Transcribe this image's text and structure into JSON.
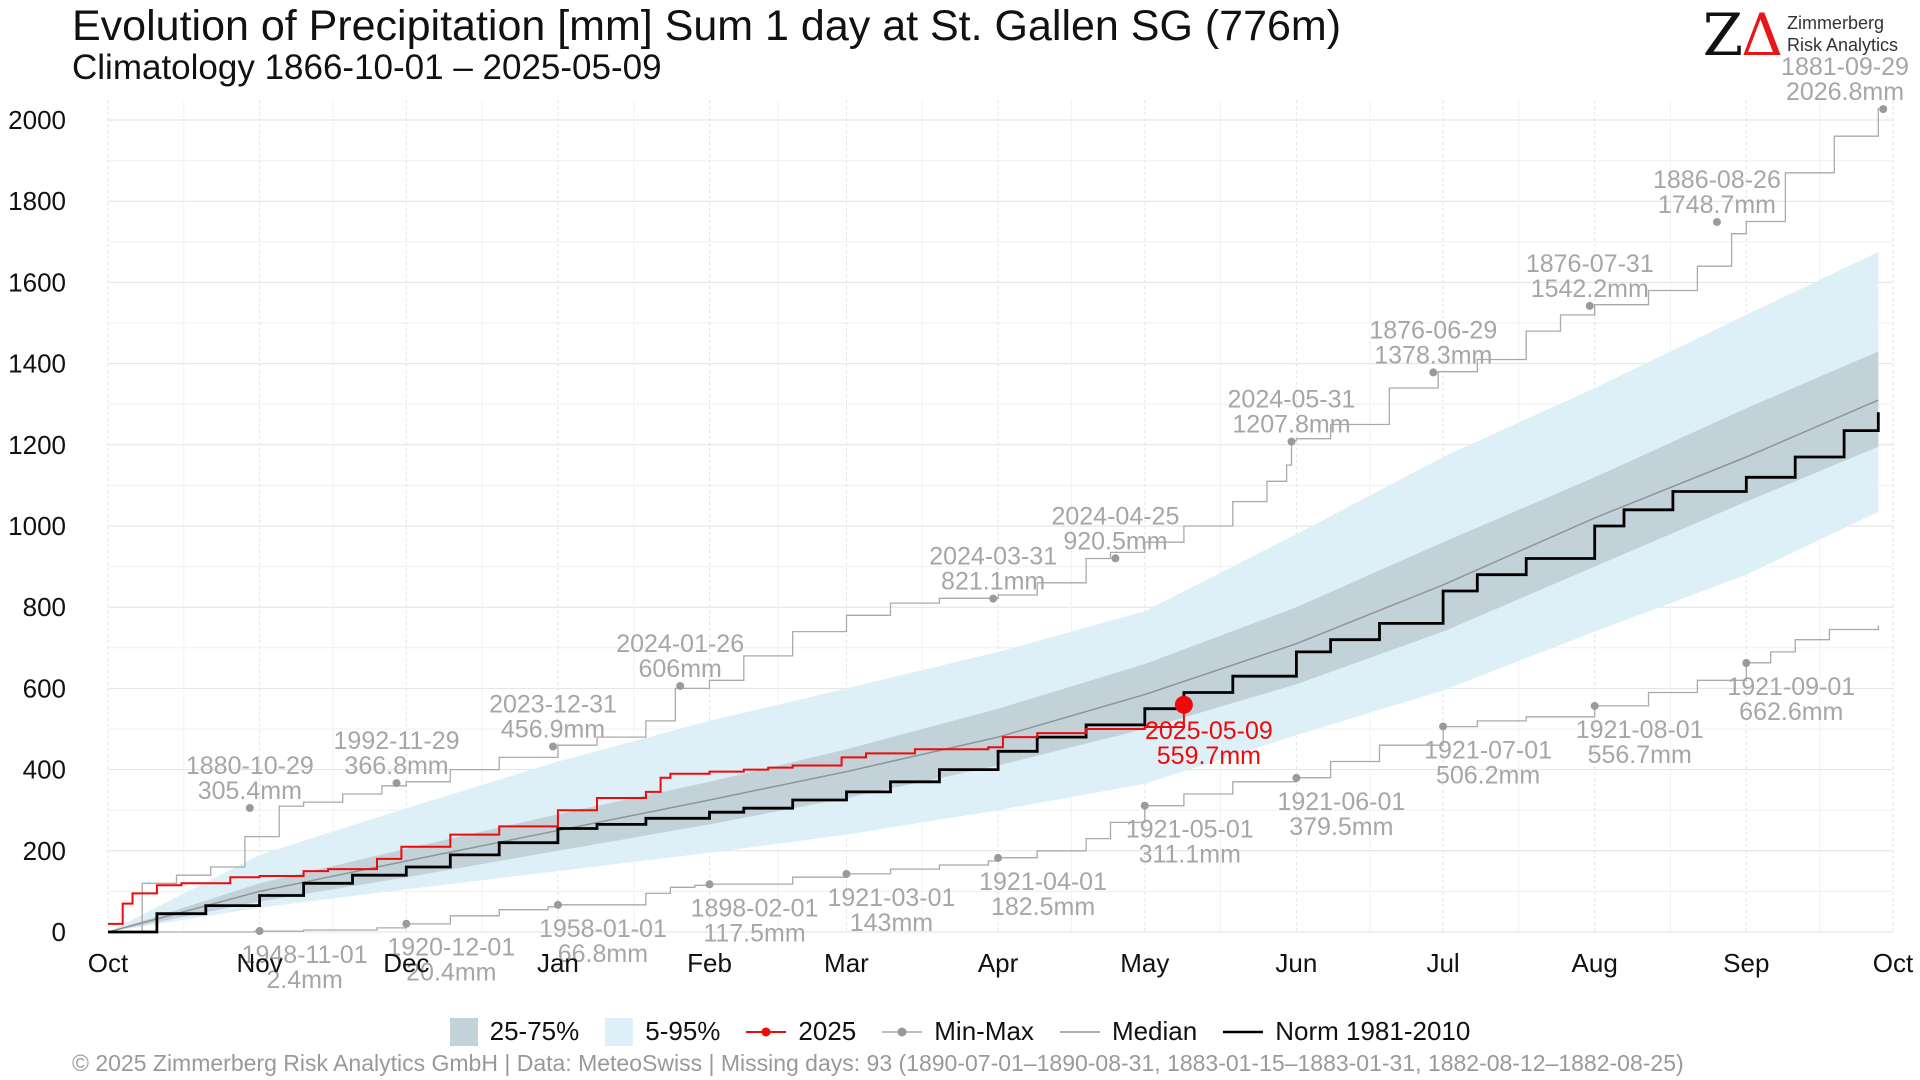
{
  "header": {
    "title": "Evolution of Precipitation [mm] Sum 1 day at St. Gallen  SG (776m)",
    "subtitle": "Climatology 1866-10-01 – 2025-05-09"
  },
  "logo": {
    "mark": "ZΔ",
    "line1": "Zimmerberg",
    "line2": "Risk Analytics"
  },
  "caption": "©  2025 Zimmerberg Risk Analytics GmbH | Data: MeteoSwiss | Missing days: 93 (1890-07-01–1890-08-31, 1883-01-15–1883-01-31, 1882-08-12–1882-08-25)",
  "colors": {
    "band_5_95": "#ddf0f8",
    "band_25_75": "#c3d2d8",
    "current": "#ee0a0a",
    "minmax": "#aaaaaa",
    "median": "#8e9599",
    "norm": "#000000",
    "label": "#a6a6a6"
  },
  "chart_data": {
    "type": "line",
    "x_unit": "day of hydrological year (Oct 1 = 0)",
    "xlim": [
      0,
      365
    ],
    "ylim": [
      0,
      2000
    ],
    "yticks": [
      0,
      200,
      400,
      600,
      800,
      1000,
      1200,
      1400,
      1600,
      1800,
      2000
    ],
    "xticks": [
      {
        "label": "Oct",
        "x": 0
      },
      {
        "label": "Nov",
        "x": 31
      },
      {
        "label": "Dec",
        "x": 61
      },
      {
        "label": "Jan",
        "x": 92
      },
      {
        "label": "Feb",
        "x": 123
      },
      {
        "label": "Mar",
        "x": 151
      },
      {
        "label": "Apr",
        "x": 182
      },
      {
        "label": "May",
        "x": 212
      },
      {
        "label": "Jun",
        "x": 243
      },
      {
        "label": "Jul",
        "x": 273
      },
      {
        "label": "Aug",
        "x": 304
      },
      {
        "label": "Sep",
        "x": 335
      },
      {
        "label": "Oct",
        "x": 365
      }
    ],
    "grid": true,
    "legend": {
      "position": "bottom",
      "items": [
        {
          "label": "25-75%",
          "kind": "band_25_75"
        },
        {
          "label": "5-95%",
          "kind": "band_5_95"
        },
        {
          "label": "2025",
          "kind": "current"
        },
        {
          "label": "Min-Max",
          "kind": "minmax"
        },
        {
          "label": "Median",
          "kind": "median"
        },
        {
          "label": "Norm 1981-2010",
          "kind": "norm"
        }
      ]
    },
    "bands": {
      "x": [
        0,
        31,
        61,
        92,
        123,
        151,
        182,
        212,
        243,
        273,
        304,
        335,
        362
      ],
      "p5": [
        0,
        60,
        105,
        150,
        195,
        240,
        300,
        365,
        485,
        595,
        740,
        880,
        1035
      ],
      "p25": [
        0,
        75,
        135,
        200,
        265,
        330,
        410,
        500,
        610,
        740,
        900,
        1060,
        1195
      ],
      "p75": [
        0,
        120,
        205,
        290,
        370,
        450,
        550,
        660,
        800,
        960,
        1120,
        1290,
        1430
      ],
      "p95": [
        0,
        190,
        305,
        420,
        520,
        600,
        690,
        790,
        980,
        1170,
        1340,
        1520,
        1675
      ]
    },
    "median": {
      "x": [
        0,
        31,
        61,
        92,
        123,
        151,
        182,
        212,
        243,
        273,
        304,
        335,
        362
      ],
      "y": [
        0,
        100,
        175,
        250,
        325,
        395,
        480,
        585,
        710,
        855,
        1020,
        1170,
        1310
      ]
    },
    "norm": {
      "x": [
        0,
        10,
        20,
        31,
        40,
        50,
        61,
        70,
        80,
        92,
        100,
        110,
        123,
        130,
        140,
        151,
        160,
        170,
        182,
        190,
        200,
        212,
        220,
        230,
        243,
        250,
        260,
        273,
        280,
        290,
        304,
        310,
        320,
        335,
        345,
        355,
        362
      ],
      "y": [
        0,
        45,
        65,
        90,
        120,
        140,
        160,
        190,
        220,
        255,
        265,
        280,
        295,
        305,
        325,
        345,
        370,
        400,
        445,
        480,
        510,
        550,
        590,
        630,
        690,
        720,
        760,
        840,
        880,
        920,
        1000,
        1040,
        1085,
        1120,
        1170,
        1235,
        1280
      ]
    },
    "current_2025": {
      "name": "2025",
      "x": [
        0,
        3,
        5,
        10,
        15,
        21,
        25,
        31,
        40,
        45,
        55,
        60,
        70,
        80,
        92,
        100,
        110,
        113,
        115,
        119,
        123,
        130,
        135,
        140,
        150,
        155,
        160,
        165,
        170,
        175,
        180,
        183,
        190,
        200,
        210,
        212,
        215,
        220
      ],
      "y": [
        20,
        70,
        95,
        115,
        120,
        120,
        135,
        138,
        150,
        155,
        180,
        210,
        240,
        260,
        300,
        330,
        345,
        380,
        390,
        390,
        395,
        400,
        405,
        410,
        430,
        440,
        440,
        450,
        450,
        450,
        455,
        480,
        490,
        500,
        500,
        505,
        505,
        560
      ]
    },
    "current_point": {
      "x": 220,
      "y": 559.7,
      "label_date": "2025-05-09",
      "label_value": "559.7mm"
    },
    "max_series": {
      "x": [
        0,
        7,
        14,
        21,
        28,
        35,
        40,
        48,
        56,
        61,
        70,
        80,
        92,
        100,
        110,
        116,
        123,
        130,
        140,
        151,
        160,
        170,
        182,
        190,
        200,
        205,
        212,
        220,
        230,
        237,
        241,
        242,
        243,
        250,
        262,
        272,
        280,
        290,
        297,
        304,
        315,
        325,
        332,
        335,
        343,
        353,
        362
      ],
      "y": [
        0,
        120,
        140,
        160,
        235,
        310,
        320,
        340,
        360,
        370,
        400,
        430,
        460,
        480,
        520,
        600,
        620,
        680,
        740,
        780,
        810,
        822,
        830,
        860,
        920,
        935,
        960,
        1000,
        1060,
        1110,
        1150,
        1210,
        1215,
        1250,
        1340,
        1380,
        1410,
        1480,
        1520,
        1545,
        1580,
        1640,
        1720,
        1750,
        1870,
        1960,
        2030
      ]
    },
    "min_series": {
      "x": [
        0,
        10,
        30,
        40,
        55,
        61,
        70,
        80,
        90,
        92,
        110,
        115,
        120,
        123,
        140,
        151,
        160,
        170,
        180,
        182,
        190,
        200,
        205,
        212,
        220,
        230,
        243,
        250,
        260,
        273,
        280,
        290,
        304,
        315,
        325,
        335,
        340,
        345,
        352,
        362
      ],
      "y": [
        0,
        0,
        2,
        5,
        10,
        20,
        40,
        55,
        62,
        67,
        95,
        110,
        115,
        118,
        135,
        143,
        155,
        165,
        175,
        183,
        200,
        230,
        270,
        311,
        340,
        370,
        380,
        420,
        460,
        506,
        520,
        530,
        557,
        590,
        620,
        663,
        690,
        720,
        745,
        755
      ]
    },
    "max_points": [
      {
        "x": 29,
        "y": 305.4,
        "date": "1880-10-29",
        "value": "305.4mm"
      },
      {
        "x": 59,
        "y": 366.8,
        "date": "1992-11-29",
        "value": "366.8mm"
      },
      {
        "x": 91,
        "y": 456.9,
        "date": "2023-12-31",
        "value": "456.9mm"
      },
      {
        "x": 117,
        "y": 606,
        "date": "2024-01-26",
        "value": "606mm"
      },
      {
        "x": 181,
        "y": 821.1,
        "date": "2024-03-31",
        "value": "821.1mm"
      },
      {
        "x": 206,
        "y": 920.5,
        "date": "2024-04-25",
        "value": "920.5mm"
      },
      {
        "x": 242,
        "y": 1207.8,
        "date": "2024-05-31",
        "value": "1207.8mm"
      },
      {
        "x": 271,
        "y": 1378.3,
        "date": "1876-06-29",
        "value": "1378.3mm"
      },
      {
        "x": 303,
        "y": 1542.2,
        "date": "1876-07-31",
        "value": "1542.2mm"
      },
      {
        "x": 329,
        "y": 1748.7,
        "date": "1886-08-26",
        "value": "1748.7mm"
      },
      {
        "x": 363,
        "y": 2026.8,
        "date": "1881-09-29",
        "value": "2026.8mm"
      }
    ],
    "min_points": [
      {
        "x": 31,
        "y": 2.4,
        "date": "1948-11-01",
        "value": "2.4mm"
      },
      {
        "x": 61,
        "y": 20.4,
        "date": "1920-12-01",
        "value": "20.4mm"
      },
      {
        "x": 92,
        "y": 66.8,
        "date": "1958-01-01",
        "value": "66.8mm"
      },
      {
        "x": 123,
        "y": 117.5,
        "date": "1898-02-01",
        "value": "117.5mm"
      },
      {
        "x": 151,
        "y": 143,
        "date": "1921-03-01",
        "value": "143mm"
      },
      {
        "x": 182,
        "y": 182.5,
        "date": "1921-04-01",
        "value": "182.5mm"
      },
      {
        "x": 212,
        "y": 311.1,
        "date": "1921-05-01",
        "value": "311.1mm"
      },
      {
        "x": 243,
        "y": 379.5,
        "date": "1921-06-01",
        "value": "379.5mm"
      },
      {
        "x": 273,
        "y": 506.2,
        "date": "1921-07-01",
        "value": "506.2mm"
      },
      {
        "x": 304,
        "y": 556.7,
        "date": "1921-08-01",
        "value": "556.7mm"
      },
      {
        "x": 335,
        "y": 662.6,
        "date": "1921-09-01",
        "value": "662.6mm"
      }
    ]
  }
}
